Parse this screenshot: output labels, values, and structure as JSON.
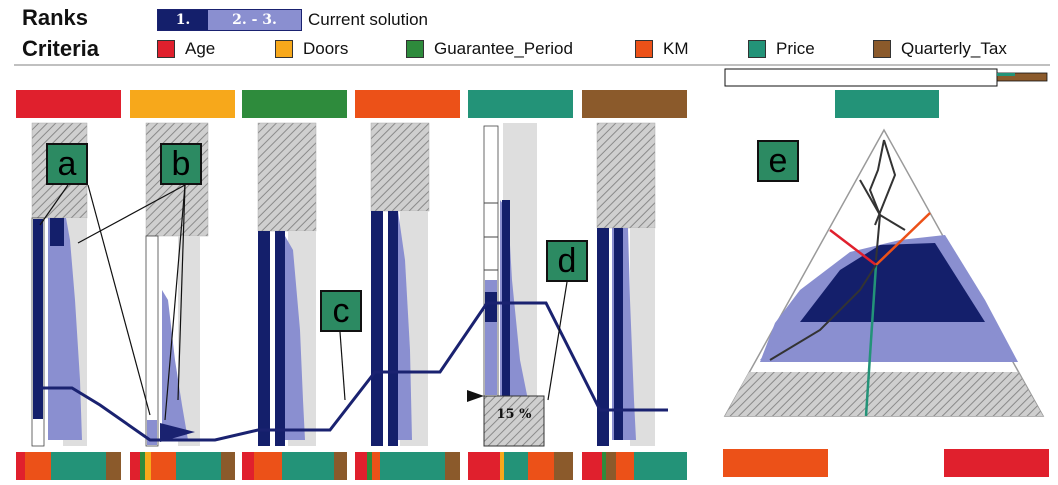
{
  "header": {
    "ranks_label": "Ranks",
    "criteria_label": "Criteria",
    "rank_first": "1.",
    "rank_rest": "2. - 3.",
    "current_solution": "Current solution"
  },
  "legend": [
    {
      "label": "Age",
      "color": "#e0202d"
    },
    {
      "label": "Doors",
      "color": "#f7a81b"
    },
    {
      "label": "Guarantee_Period",
      "color": "#2e8b3c"
    },
    {
      "label": "KM",
      "color": "#ec5118"
    },
    {
      "label": "Price",
      "color": "#239378"
    },
    {
      "label": "Quarterly_Tax",
      "color": "#8b5a2b"
    }
  ],
  "annotations": {
    "a": "a",
    "b": "b",
    "c": "c",
    "d": "d",
    "e": "e"
  },
  "percent_label": "15 %",
  "colors": {
    "rank1": "#141f6b",
    "rank23": "#8a8fd0",
    "gray": "#dedede",
    "line": "#1a2270"
  }
}
